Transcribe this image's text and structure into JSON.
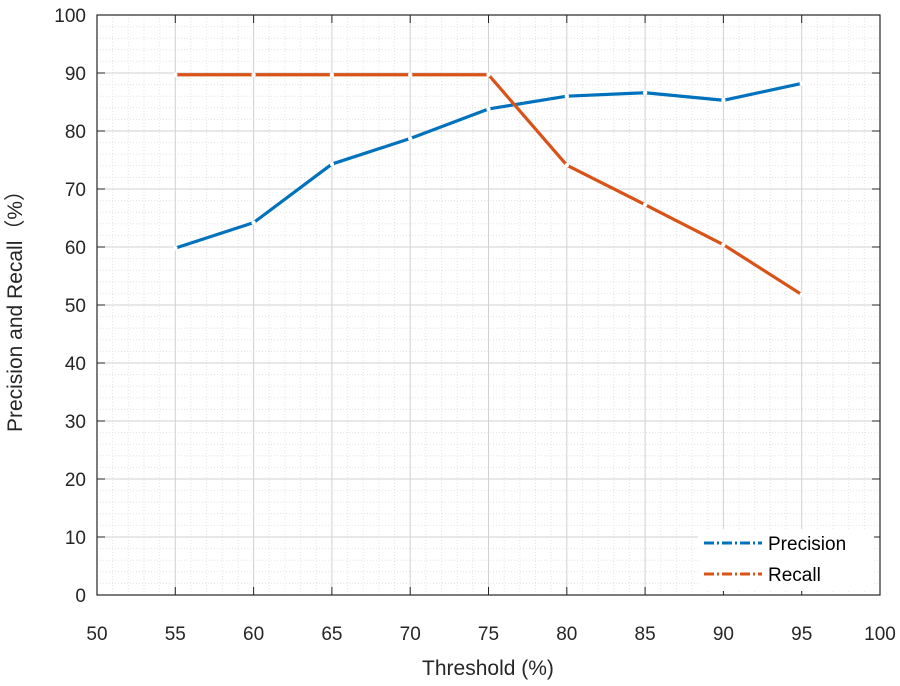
{
  "chart_data": {
    "type": "line",
    "title": "",
    "xlabel": "Threshold (%)",
    "ylabel": "Precision and Recall（%）",
    "xlim": [
      50,
      100
    ],
    "ylim": [
      0,
      100
    ],
    "xticks": [
      50,
      55,
      60,
      65,
      70,
      75,
      80,
      85,
      90,
      95,
      100
    ],
    "yticks": [
      0,
      10,
      20,
      30,
      40,
      50,
      60,
      70,
      80,
      90,
      100
    ],
    "grid": true,
    "minor_grid": true,
    "legend_position": "bottom-right",
    "x": [
      55,
      60,
      65,
      70,
      75,
      80,
      85,
      90,
      95
    ],
    "series": [
      {
        "name": "Precision",
        "color": "#0072BD",
        "values": [
          59.8,
          64.2,
          74.3,
          78.7,
          83.8,
          86.0,
          86.6,
          85.3,
          88.2
        ]
      },
      {
        "name": "Recall",
        "color": "#D95319",
        "values": [
          89.7,
          89.7,
          89.7,
          89.7,
          89.7,
          74.1,
          67.3,
          60.4,
          51.8
        ]
      }
    ]
  }
}
